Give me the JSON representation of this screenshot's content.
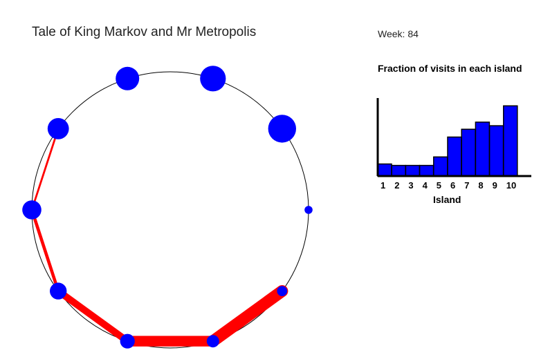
{
  "title": "Tale of King Markov and Mr Metropolis",
  "week_label": "Week:",
  "week_value": "84",
  "chart_data": [
    {
      "type": "network",
      "islands": [
        {
          "id": 1,
          "size": 1
        },
        {
          "id": 2,
          "size": 2
        },
        {
          "id": 3,
          "size": 3
        },
        {
          "id": 4,
          "size": 4
        },
        {
          "id": 5,
          "size": 5
        },
        {
          "id": 6,
          "size": 6
        },
        {
          "id": 7,
          "size": 7
        },
        {
          "id": 8,
          "size": 8
        },
        {
          "id": 9,
          "size": 9
        },
        {
          "id": 10,
          "size": 10
        }
      ],
      "path": [
        {
          "from": 7,
          "to": 6,
          "weight": 1
        },
        {
          "from": 6,
          "to": 5,
          "weight": 2
        },
        {
          "from": 5,
          "to": 4,
          "weight": 5
        },
        {
          "from": 4,
          "to": 3,
          "weight": 8
        },
        {
          "from": 3,
          "to": 2,
          "weight": 9
        }
      ],
      "colors": {
        "island": "#0000ff",
        "path": "#ff0000",
        "circle": "#000000"
      }
    },
    {
      "type": "bar",
      "title": "Fraction of visits in each island",
      "categories": [
        "1",
        "2",
        "3",
        "4",
        "5",
        "6",
        "7",
        "8",
        "9",
        "10"
      ],
      "values": [
        0.017,
        0.015,
        0.015,
        0.015,
        0.027,
        0.055,
        0.066,
        0.076,
        0.071,
        0.099
      ],
      "xlabel": "Island",
      "ylabel": "",
      "ylim": [
        0,
        0.11
      ],
      "colors": {
        "bar": "#0000ff",
        "edge": "#000000"
      }
    }
  ]
}
